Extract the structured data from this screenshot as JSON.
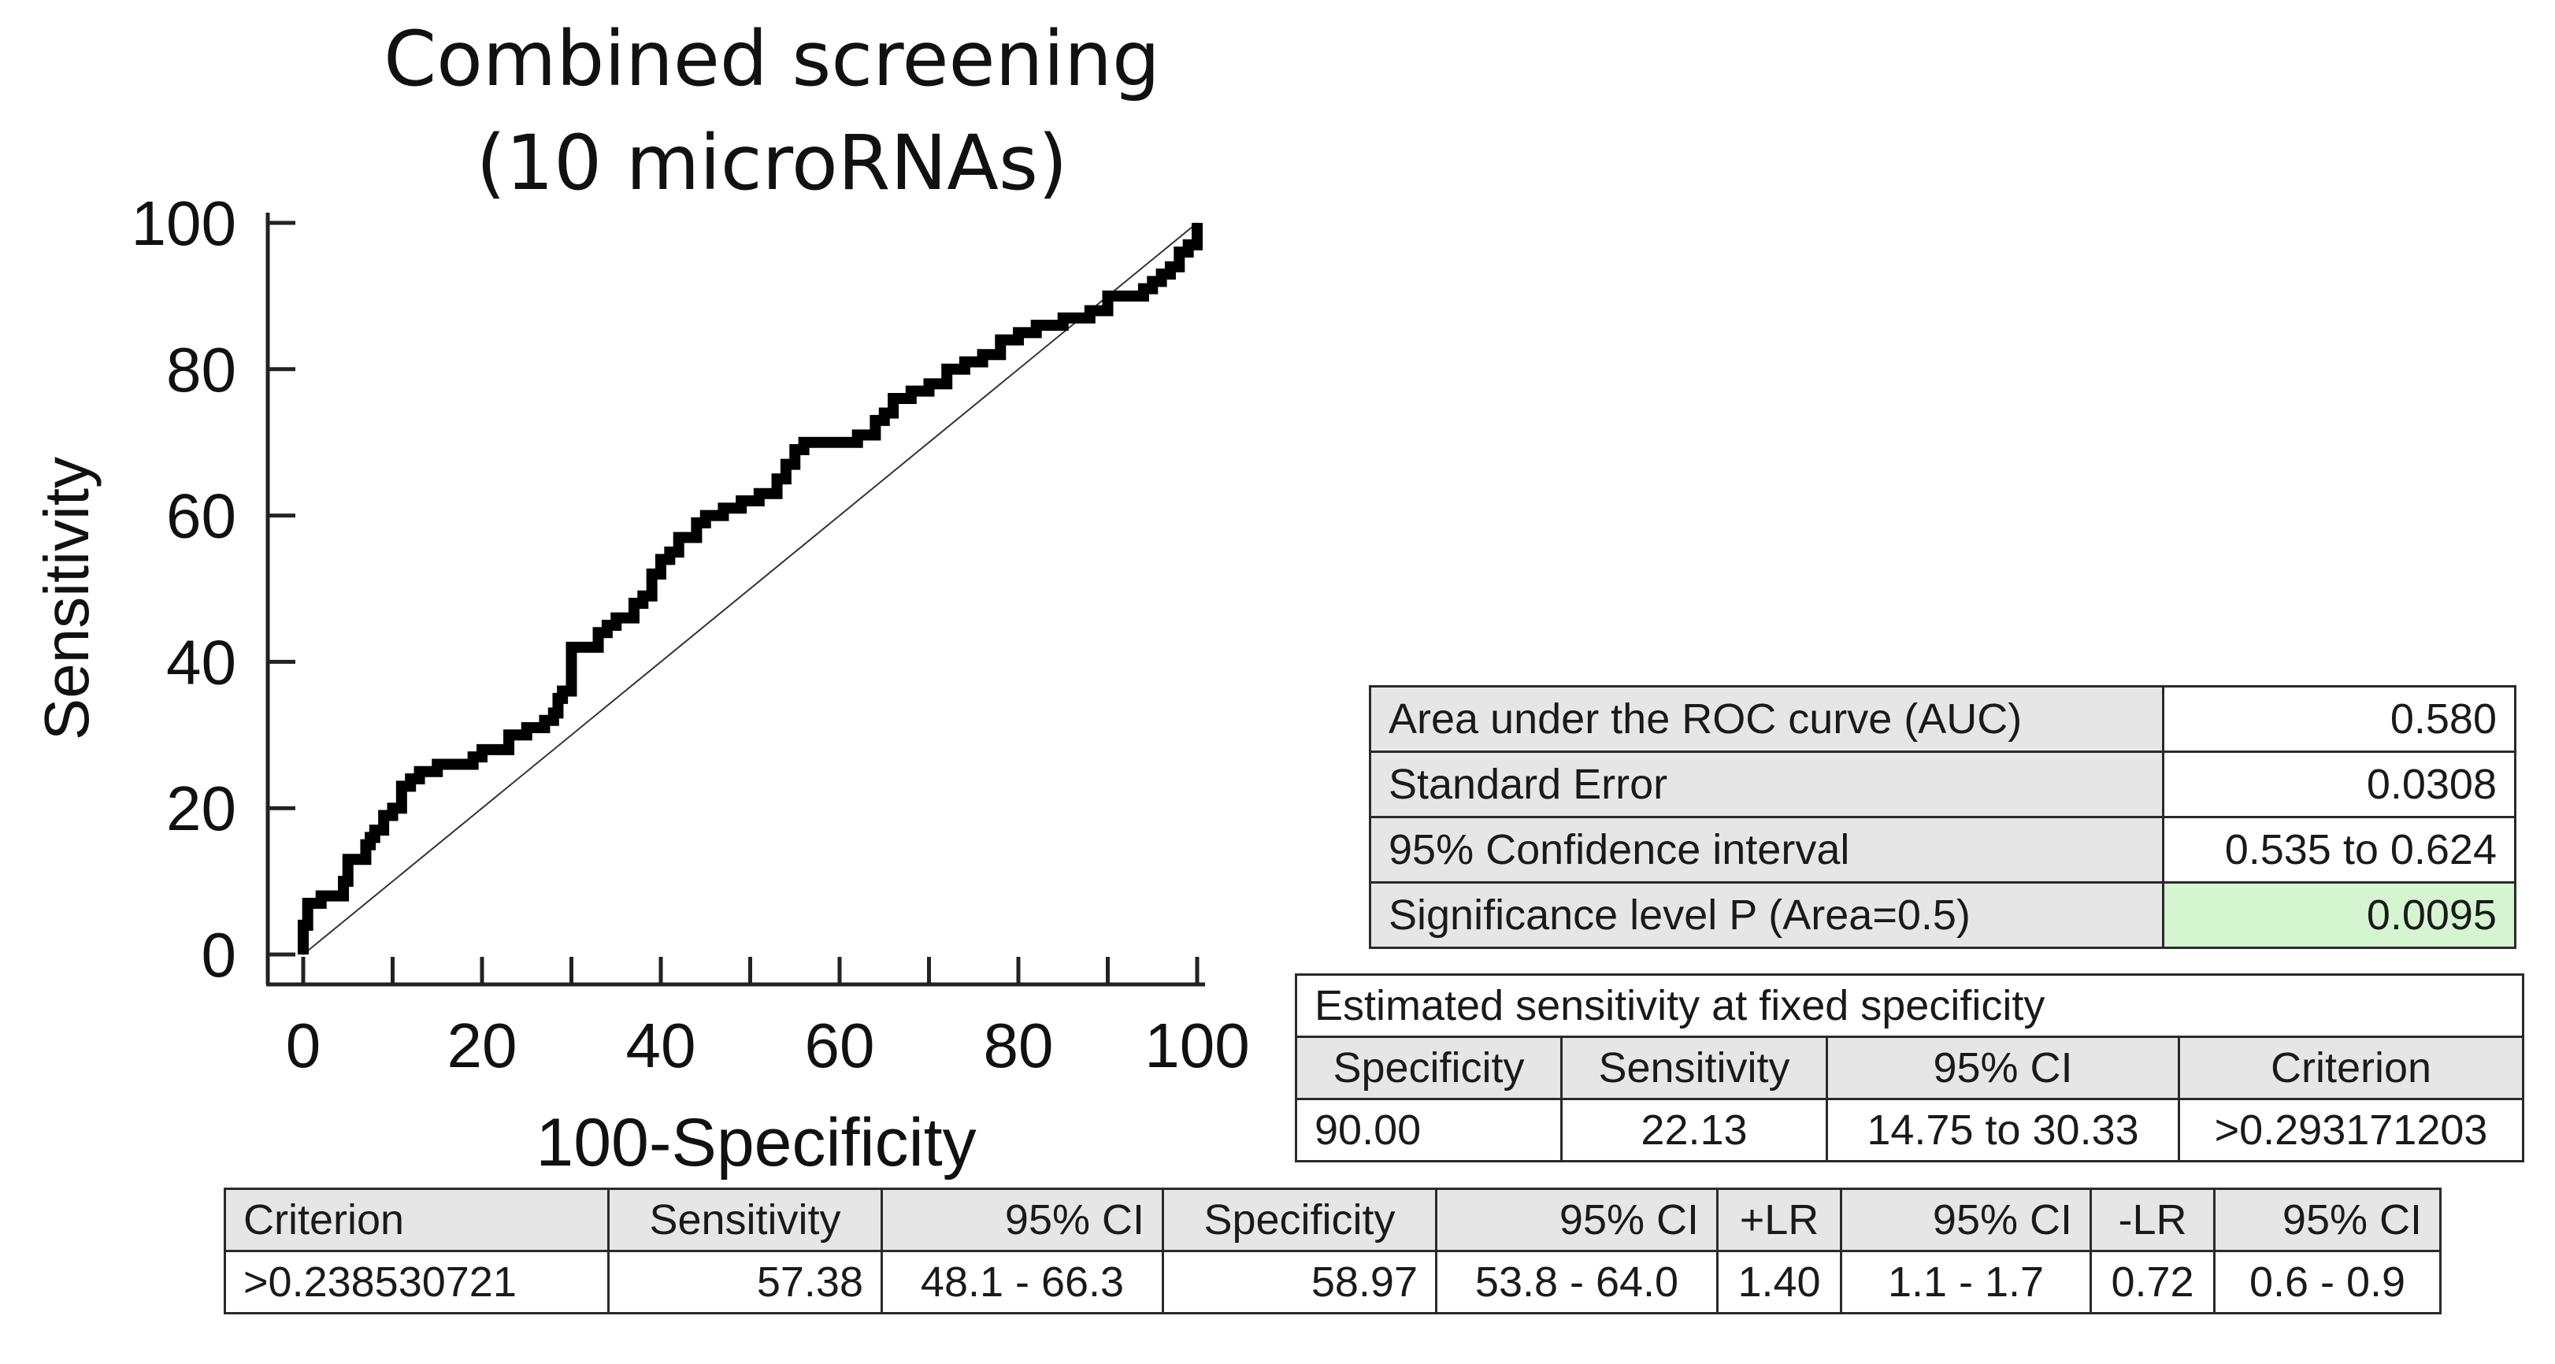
{
  "chart_data": {
    "type": "line",
    "title": [
      "Combined screening",
      "(10 microRNAs)"
    ],
    "xlabel": "100-Specificity",
    "ylabel": "Sensitivity",
    "xlim": [
      0,
      100
    ],
    "ylim": [
      0,
      100
    ],
    "x_ticks": [
      0,
      20,
      40,
      60,
      80,
      100
    ],
    "y_ticks": [
      0,
      20,
      40,
      60,
      80,
      100
    ],
    "series": [
      {
        "name": "ROC curve",
        "x": [
          0,
          0,
          0.5,
          1,
          2,
          3,
          4,
          4.5,
          5,
          6,
          7,
          7.5,
          8,
          9,
          10,
          11,
          12,
          13,
          15,
          17,
          19,
          20,
          21,
          23,
          25,
          27,
          28,
          28.5,
          29,
          30,
          31,
          33,
          34,
          35,
          36,
          37,
          38,
          39,
          40,
          41,
          42,
          44,
          45,
          47,
          49,
          51,
          53,
          54,
          55,
          56,
          57,
          58,
          60,
          62,
          64,
          65,
          66,
          68,
          70,
          72,
          74,
          76,
          78,
          80,
          82,
          84,
          85,
          86,
          88,
          90,
          92,
          94,
          95,
          96,
          97,
          98,
          99,
          100
        ],
        "y": [
          0,
          4,
          7,
          7,
          8,
          8,
          8,
          10,
          13,
          13,
          15,
          16,
          17,
          19,
          20,
          23,
          24,
          25,
          26,
          26,
          27,
          28,
          28,
          30,
          31,
          32,
          33,
          35,
          36,
          42,
          42,
          44,
          45,
          46,
          46,
          48,
          49,
          52,
          54,
          55,
          57,
          59,
          60,
          61,
          62,
          63,
          65,
          67,
          69,
          70,
          70,
          70,
          70,
          71,
          73,
          74,
          76,
          77,
          78,
          80,
          81,
          82,
          84,
          85,
          86,
          86,
          87,
          87,
          88,
          90,
          90,
          91,
          92,
          93,
          94,
          96,
          97,
          100
        ]
      },
      {
        "name": "reference diagonal",
        "x": [
          0,
          100
        ],
        "y": [
          0,
          100
        ]
      }
    ]
  },
  "auc_table": {
    "rows": [
      {
        "label": "Area under the ROC curve (AUC)",
        "value": "0.580"
      },
      {
        "label": "Standard Error",
        "value": "0.0308"
      },
      {
        "label": "95% Confidence interval",
        "value": "0.535 to 0.624"
      },
      {
        "label": "Significance level P (Area=0.5)",
        "value": "0.0095"
      }
    ]
  },
  "fixed_specificity_table": {
    "title": "Estimated sensitivity at fixed specificity",
    "headers": [
      "Specificity",
      "Sensitivity",
      "95% CI",
      "Criterion"
    ],
    "row": [
      "90.00",
      "22.13",
      "14.75 to 30.33",
      ">0.293171203"
    ]
  },
  "criterion_table": {
    "headers": [
      "Criterion",
      "Sensitivity",
      "95% CI",
      "Specificity",
      "95% CI",
      "+LR",
      "95% CI",
      "-LR",
      "95% CI"
    ],
    "row": [
      ">0.238530721",
      "57.38",
      "48.1 - 66.3",
      "58.97",
      "53.8 - 64.0",
      "1.40",
      "1.1 - 1.7",
      "0.72",
      "0.6 - 0.9"
    ]
  }
}
